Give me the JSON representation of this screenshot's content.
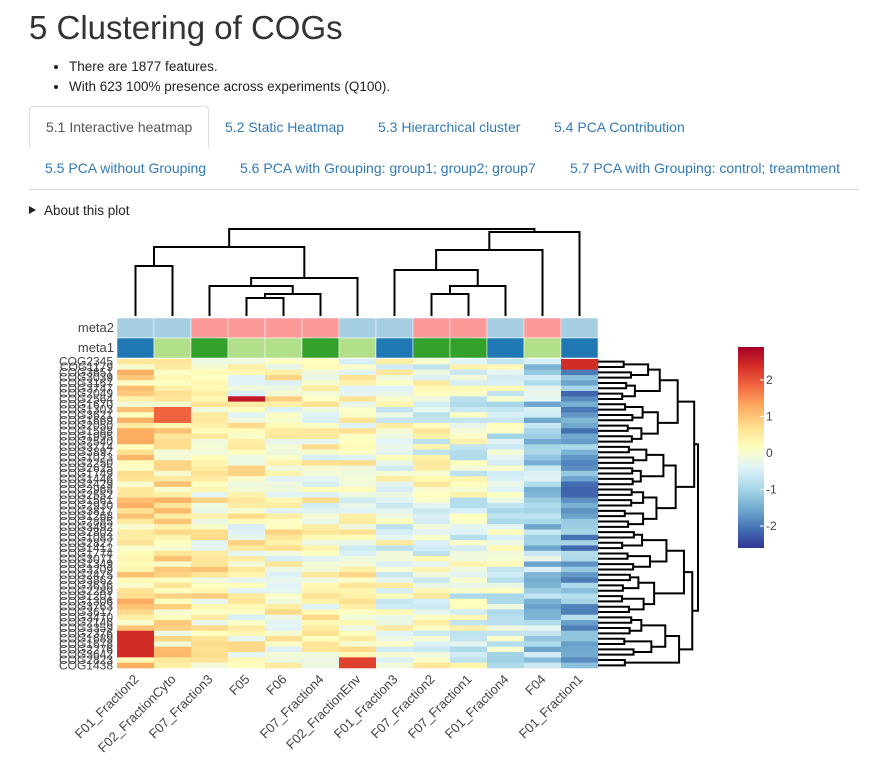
{
  "page": {
    "title": "5 Clustering of COGs",
    "bullets": [
      "There are 1877 features.",
      "With 623 100% presence across experiments (Q100)."
    ],
    "tabs": [
      {
        "label": "5.1 Interactive heatmap",
        "active": true
      },
      {
        "label": "5.2 Static Heatmap",
        "active": false
      },
      {
        "label": "5.3 Hierarchical cluster",
        "active": false
      },
      {
        "label": "5.4 PCA Contribution",
        "active": false
      },
      {
        "label": "5.5 PCA without Grouping",
        "active": false
      },
      {
        "label": "5.6 PCA with Grouping: group1; group2; group7",
        "active": false
      },
      {
        "label": "5.7 PCA with Grouping: control; treamtment",
        "active": false
      }
    ],
    "about_label": "About this plot"
  },
  "chart_data": {
    "type": "heatmap",
    "columns": [
      "F01_Fraction2",
      "F02_FractionCyto",
      "F07_Fraction3",
      "F05",
      "F06",
      "F07_Fraction4",
      "F02_FractionEnv",
      "F01_Fraction3",
      "F07_Fraction2",
      "F07_Fraction1",
      "F01_Fraction4",
      "F04",
      "F01_Fraction1"
    ],
    "annotation_tracks": [
      {
        "name": "meta2",
        "values": [
          "blue",
          "blue",
          "red",
          "red",
          "red",
          "red",
          "blue",
          "blue",
          "red",
          "red",
          "blue",
          "red",
          "blue"
        ]
      },
      {
        "name": "meta1",
        "values": [
          "darkblue",
          "lightgreen",
          "darkgreen",
          "lightgreen",
          "lightgreen",
          "darkgreen",
          "lightgreen",
          "darkblue",
          "darkgreen",
          "darkgreen",
          "darkblue",
          "lightgreen",
          "darkblue"
        ]
      }
    ],
    "annotation_colors": {
      "blue": "#a6cee3",
      "red": "#fb9a99",
      "darkblue": "#1f78b4",
      "lightgreen": "#b2df8a",
      "darkgreen": "#33a02c"
    },
    "row_labels_visible": [
      "COG2345",
      "COG1438"
    ],
    "colorbar": {
      "ticks": [
        2,
        1,
        0,
        -1,
        -2
      ],
      "range": [
        -2.6,
        2.9
      ],
      "colors": [
        "#313695",
        "#4575b4",
        "#74add1",
        "#abd9e9",
        "#e0f3f8",
        "#ffffbf",
        "#fee090",
        "#fdae61",
        "#f46d43",
        "#d73027",
        "#a50026"
      ]
    },
    "column_means": [
      0.6,
      0.5,
      0.35,
      0.2,
      0.2,
      0.15,
      0.1,
      -0.1,
      -0.1,
      -0.25,
      -0.4,
      -0.9,
      -1.5
    ]
  }
}
